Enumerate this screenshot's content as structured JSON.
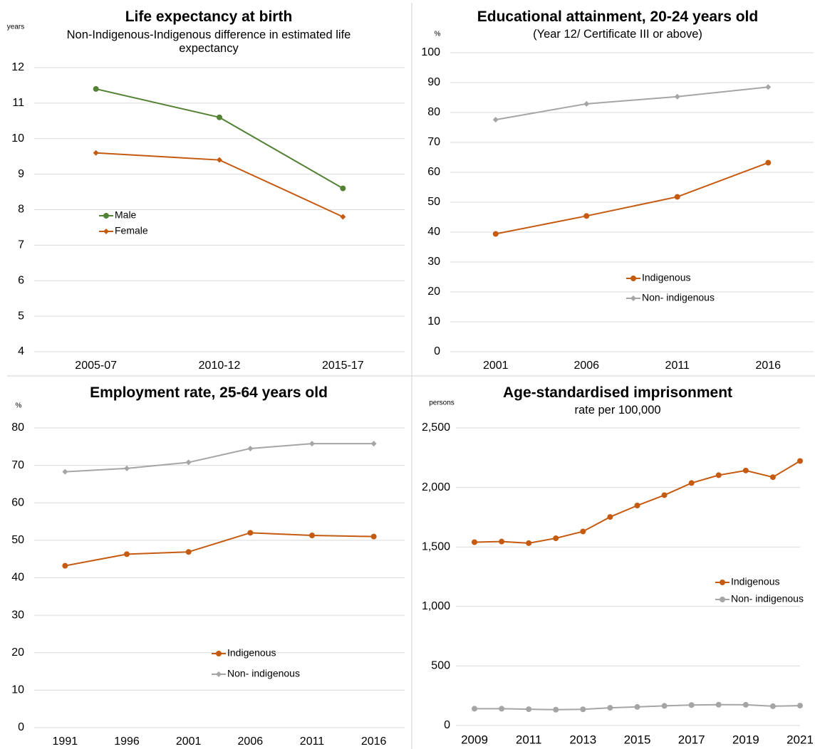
{
  "chart_data": [
    {
      "type": "line",
      "title": "Life expectancy at birth",
      "subtitle": "Non-Indigenous-Indigenous difference in estimated life expectancy",
      "unit": "years",
      "categories": [
        "2005-07",
        "2010-12",
        "2015-17"
      ],
      "series": [
        {
          "name": "Male",
          "color": "#548235",
          "marker": "circle",
          "values": [
            11.4,
            10.6,
            8.6
          ]
        },
        {
          "name": "Female",
          "color": "#c55a11",
          "marker": "diamond",
          "values": [
            9.6,
            9.4,
            7.8
          ]
        }
      ],
      "ylim": [
        4,
        12
      ],
      "yticks": [
        4,
        5,
        6,
        7,
        8,
        9,
        10,
        11,
        12
      ],
      "grid": true
    },
    {
      "type": "line",
      "title": "Educational attainment, 20-24 years old",
      "subtitle": "(Year 12/ Certificate III or above)",
      "unit": "%",
      "categories": [
        "2001",
        "2006",
        "2011",
        "2016"
      ],
      "series": [
        {
          "name": "Indigenous",
          "color": "#c55a11",
          "marker": "circle",
          "values": [
            39.4,
            45.4,
            51.8,
            63.2
          ]
        },
        {
          "name": "Non- indigenous",
          "color": "#a5a5a5",
          "marker": "diamond",
          "values": [
            77.6,
            82.9,
            85.3,
            88.5
          ]
        }
      ],
      "ylim": [
        0,
        100
      ],
      "yticks": [
        0,
        10,
        20,
        30,
        40,
        50,
        60,
        70,
        80,
        90,
        100
      ],
      "grid": true
    },
    {
      "type": "line",
      "title": "Employment rate, 25-64 years old",
      "unit": "%",
      "categories": [
        "1991",
        "1996",
        "2001",
        "2006",
        "2011",
        "2016"
      ],
      "series": [
        {
          "name": "Indigenous",
          "color": "#c55a11",
          "marker": "circle",
          "values": [
            43.2,
            46.3,
            46.9,
            52.0,
            51.3,
            51.0
          ]
        },
        {
          "name": "Non- indigenous",
          "color": "#a5a5a5",
          "marker": "diamond",
          "values": [
            68.3,
            69.2,
            70.8,
            74.5,
            75.8,
            75.8
          ]
        }
      ],
      "ylim": [
        0,
        80
      ],
      "yticks": [
        0,
        10,
        20,
        30,
        40,
        50,
        60,
        70,
        80
      ],
      "grid": true
    },
    {
      "type": "line",
      "title": "Age-standardised imprisonment",
      "subtitle": "rate per 100,000",
      "unit": "persons",
      "x": [
        2009,
        2010,
        2011,
        2012,
        2013,
        2014,
        2015,
        2016,
        2017,
        2018,
        2019,
        2020,
        2021
      ],
      "xlim": [
        2009,
        2021
      ],
      "xticks": [
        2009,
        2011,
        2013,
        2015,
        2017,
        2019,
        2021
      ],
      "series": [
        {
          "name": "Indigenous",
          "color": "#c55a11",
          "marker": "circle",
          "values": [
            1540,
            1545,
            1532,
            1573,
            1630,
            1752,
            1848,
            1935,
            2037,
            2103,
            2142,
            2086,
            2222
          ]
        },
        {
          "name": "Non- indigenous",
          "color": "#a5a5a5",
          "marker": "circle",
          "values": [
            141,
            141,
            137,
            133,
            136,
            149,
            156,
            165,
            172,
            175,
            174,
            162,
            167
          ]
        }
      ],
      "ylim": [
        0,
        2500
      ],
      "yticks": [
        0,
        500,
        {
          "value": 1000,
          "label": "1,000"
        },
        {
          "value": 1500,
          "label": "1,500"
        },
        {
          "value": 2000,
          "label": "2,000"
        },
        {
          "value": 2500,
          "label": "2,500"
        }
      ],
      "grid": true
    }
  ]
}
